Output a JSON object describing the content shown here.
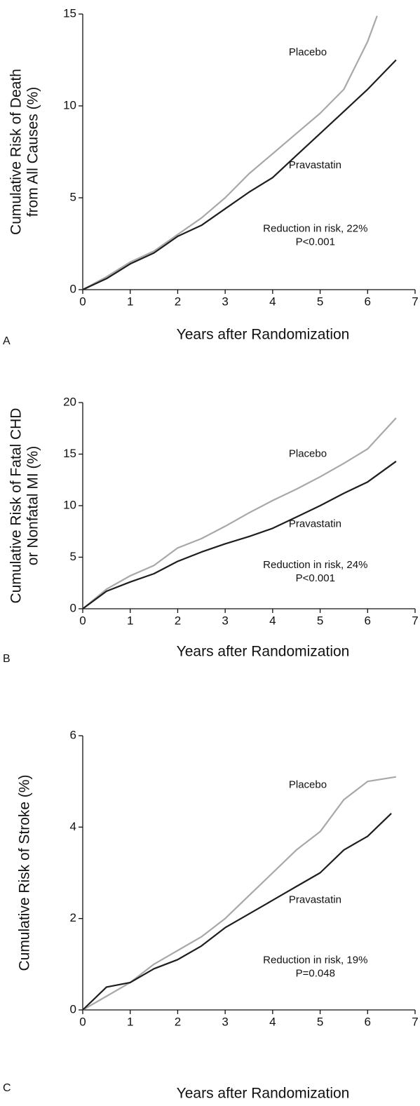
{
  "chart_data": [
    {
      "type": "line",
      "panel": "A",
      "ylabel": [
        "Cumulative Risk of Death",
        "from All Causes (%)"
      ],
      "xlabel": "Years after Randomization",
      "xlim": [
        0,
        7
      ],
      "xticks": [
        0,
        1,
        2,
        3,
        4,
        5,
        6,
        7
      ],
      "ylim": [
        0,
        15
      ],
      "yticks": [
        0,
        5,
        10,
        15
      ],
      "series": [
        {
          "name": "Placebo",
          "color": "#a8a8a8",
          "x": [
            0,
            0.5,
            1,
            1.5,
            2,
            2.5,
            3,
            3.5,
            4,
            4.5,
            5,
            5.5,
            6,
            6.2
          ],
          "values": [
            0,
            0.7,
            1.5,
            2.1,
            3.0,
            3.9,
            5.0,
            6.3,
            7.4,
            8.5,
            9.6,
            10.9,
            13.5,
            14.9
          ]
        },
        {
          "name": "Pravastatin",
          "color": "#1e1e1e",
          "x": [
            0,
            0.5,
            1,
            1.5,
            2,
            2.5,
            3,
            3.5,
            4,
            4.5,
            5,
            5.5,
            6,
            6.6
          ],
          "values": [
            0,
            0.6,
            1.4,
            2.0,
            2.9,
            3.5,
            4.4,
            5.3,
            6.1,
            7.3,
            8.5,
            9.7,
            10.9,
            12.5
          ]
        }
      ],
      "annotations": [
        "Reduction in risk, 22%",
        "P<0.001"
      ]
    },
    {
      "type": "line",
      "panel": "B",
      "ylabel": [
        "Cumulative Risk of Fatal CHD",
        "or Nonfatal MI (%)"
      ],
      "xlabel": "Years after Randomization",
      "xlim": [
        0,
        7
      ],
      "xticks": [
        0,
        1,
        2,
        3,
        4,
        5,
        6,
        7
      ],
      "ylim": [
        0,
        20
      ],
      "yticks": [
        0,
        5,
        10,
        15,
        20
      ],
      "series": [
        {
          "name": "Placebo",
          "color": "#a8a8a8",
          "x": [
            0,
            0.5,
            1,
            1.5,
            2,
            2.5,
            3,
            3.5,
            4,
            4.5,
            5,
            5.5,
            6,
            6.6
          ],
          "values": [
            0,
            1.9,
            3.2,
            4.2,
            5.9,
            6.8,
            8.0,
            9.3,
            10.5,
            11.6,
            12.8,
            14.1,
            15.5,
            18.5
          ]
        },
        {
          "name": "Pravastatin",
          "color": "#1e1e1e",
          "x": [
            0,
            0.5,
            1,
            1.5,
            2,
            2.5,
            3,
            3.5,
            4,
            4.5,
            5,
            5.5,
            6,
            6.6
          ],
          "values": [
            0,
            1.7,
            2.6,
            3.4,
            4.6,
            5.5,
            6.3,
            7.0,
            7.8,
            8.9,
            10.0,
            11.2,
            12.3,
            14.3
          ]
        }
      ],
      "annotations": [
        "Reduction in risk, 24%",
        "P<0.001"
      ]
    },
    {
      "type": "line",
      "panel": "C",
      "ylabel": [
        "Cumulative Risk of Stroke (%)"
      ],
      "xlabel": "Years after Randomization",
      "xlim": [
        0,
        7
      ],
      "xticks": [
        0,
        1,
        2,
        3,
        4,
        5,
        6,
        7
      ],
      "ylim": [
        0,
        6
      ],
      "yticks": [
        0,
        2,
        4,
        6
      ],
      "series": [
        {
          "name": "Placebo",
          "color": "#a8a8a8",
          "x": [
            0,
            0.5,
            1,
            1.5,
            2,
            2.5,
            3,
            3.5,
            4,
            4.5,
            5,
            5.5,
            6,
            6.6
          ],
          "values": [
            0,
            0.3,
            0.6,
            1.0,
            1.3,
            1.6,
            2.0,
            2.5,
            3.0,
            3.5,
            3.9,
            4.6,
            5.0,
            5.1
          ]
        },
        {
          "name": "Pravastatin",
          "color": "#1e1e1e",
          "x": [
            0,
            0.5,
            1,
            1.5,
            2,
            2.5,
            3,
            3.5,
            4,
            4.5,
            5,
            5.5,
            6,
            6.5
          ],
          "values": [
            0,
            0.5,
            0.6,
            0.9,
            1.1,
            1.4,
            1.8,
            2.1,
            2.4,
            2.7,
            3.0,
            3.5,
            3.8,
            4.3
          ]
        }
      ],
      "annotations": [
        "Reduction in risk, 19%",
        "P=0.048"
      ]
    }
  ]
}
